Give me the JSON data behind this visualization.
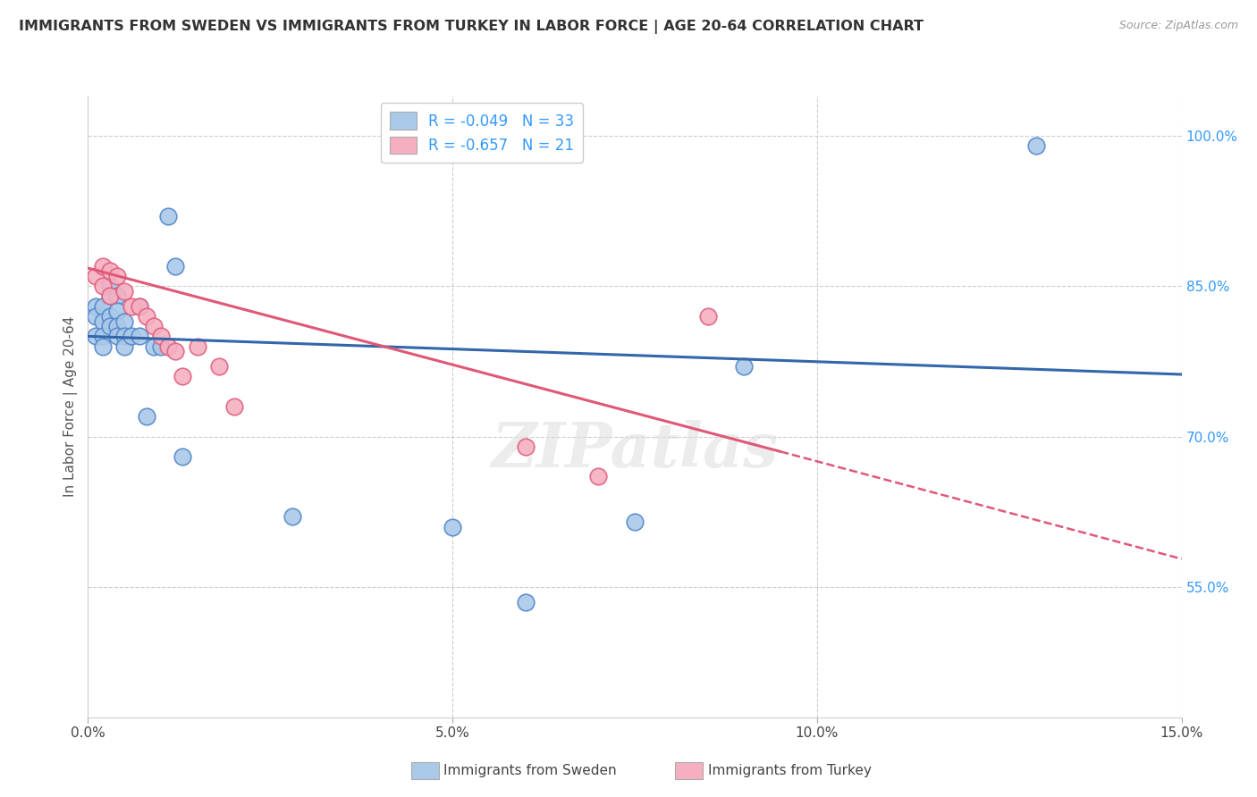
{
  "title": "IMMIGRANTS FROM SWEDEN VS IMMIGRANTS FROM TURKEY IN LABOR FORCE | AGE 20-64 CORRELATION CHART",
  "source": "Source: ZipAtlas.com",
  "ylabel": "In Labor Force | Age 20-64",
  "xlim": [
    0.0,
    0.15
  ],
  "ylim": [
    0.42,
    1.04
  ],
  "xticks": [
    0.0,
    0.05,
    0.1,
    0.15
  ],
  "xtick_labels": [
    "0.0%",
    "5.0%",
    "10.0%",
    "15.0%"
  ],
  "yticks_right": [
    0.55,
    0.7,
    0.85,
    1.0
  ],
  "ytick_labels_right": [
    "55.0%",
    "70.0%",
    "85.0%",
    "100.0%"
  ],
  "sweden_color": "#aac9e8",
  "turkey_color": "#f5afc0",
  "sweden_edge": "#5588cc",
  "turkey_edge": "#e06080",
  "trend_sweden_color": "#3366aa",
  "trend_turkey_color": "#e05878",
  "legend_r_sweden": "-0.049",
  "legend_n_sweden": "33",
  "legend_r_turkey": "-0.657",
  "legend_n_turkey": "21",
  "watermark": "ZIPatlas",
  "sweden_x": [
    0.001,
    0.001,
    0.001,
    0.002,
    0.002,
    0.002,
    0.002,
    0.003,
    0.003,
    0.003,
    0.003,
    0.004,
    0.004,
    0.004,
    0.004,
    0.005,
    0.005,
    0.005,
    0.006,
    0.007,
    0.007,
    0.008,
    0.009,
    0.01,
    0.011,
    0.012,
    0.013,
    0.028,
    0.05,
    0.06,
    0.075,
    0.09,
    0.13
  ],
  "sweden_y": [
    0.83,
    0.82,
    0.8,
    0.83,
    0.815,
    0.8,
    0.79,
    0.85,
    0.84,
    0.82,
    0.81,
    0.84,
    0.825,
    0.81,
    0.8,
    0.815,
    0.8,
    0.79,
    0.8,
    0.83,
    0.8,
    0.72,
    0.79,
    0.79,
    0.92,
    0.87,
    0.68,
    0.62,
    0.61,
    0.535,
    0.615,
    0.77,
    0.99
  ],
  "turkey_x": [
    0.001,
    0.002,
    0.002,
    0.003,
    0.003,
    0.004,
    0.005,
    0.006,
    0.007,
    0.008,
    0.009,
    0.01,
    0.011,
    0.012,
    0.013,
    0.015,
    0.018,
    0.02,
    0.06,
    0.07,
    0.085
  ],
  "turkey_y": [
    0.86,
    0.87,
    0.85,
    0.865,
    0.84,
    0.86,
    0.845,
    0.83,
    0.83,
    0.82,
    0.81,
    0.8,
    0.79,
    0.785,
    0.76,
    0.79,
    0.77,
    0.73,
    0.69,
    0.66,
    0.82
  ],
  "trend_sweden_x0": 0.0,
  "trend_sweden_x1": 0.15,
  "trend_sweden_y0": 0.8,
  "trend_sweden_y1": 0.762,
  "trend_turkey_x0": 0.0,
  "trend_turkey_x1": 0.095,
  "trend_turkey_y0": 0.868,
  "trend_turkey_y1": 0.685,
  "trend_turkey_dash_x0": 0.095,
  "trend_turkey_dash_x1": 0.15,
  "trend_turkey_dash_y0": 0.685,
  "trend_turkey_dash_y1": 0.578
}
